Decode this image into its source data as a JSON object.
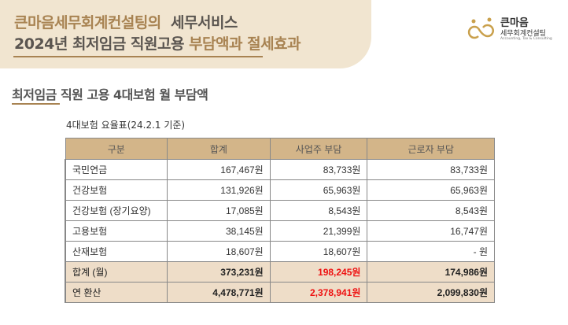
{
  "header": {
    "line1_accent": "큰마음세무회계컨설팅의",
    "line1_rest": "세무서비스",
    "line2_dark": "2024년 최저임금 직원고용",
    "line2_accent": "부담액과 절세효과"
  },
  "logo": {
    "main": "큰마음",
    "sub": "세무회계컨설팅",
    "en": "Accounting, Tax & Consulting"
  },
  "section_title": "최저임금 직원 고용 4대보험 월 부담액",
  "caption": "4대보험 요율표(24.2.1 기준)",
  "table": {
    "headers": [
      "구분",
      "합계",
      "사업주 부담",
      "근로자 부담"
    ],
    "rows": [
      [
        "국민연금",
        "167,467원",
        "83,733원",
        "83,733원"
      ],
      [
        "건강보험",
        "131,926원",
        "65,963원",
        "65,963원"
      ],
      [
        "건강보험 (장기요양)",
        "17,085원",
        "8,543원",
        "8,543원"
      ],
      [
        "고용보험",
        "38,145원",
        "21,399원",
        "16,747원"
      ],
      [
        "산재보험",
        "18,607원",
        "18,607원",
        "- 원"
      ]
    ],
    "totals": [
      [
        "합계 (월)",
        "373,231원",
        "198,245원",
        "174,986원"
      ],
      [
        "연 환산",
        "4,478,771원",
        "2,378,941원",
        "2,099,830원"
      ]
    ]
  },
  "colors": {
    "accent": "#a88352",
    "header_bg": "#d3b589",
    "total_bg": "#eeddc8",
    "highlight": "#ee1111"
  }
}
